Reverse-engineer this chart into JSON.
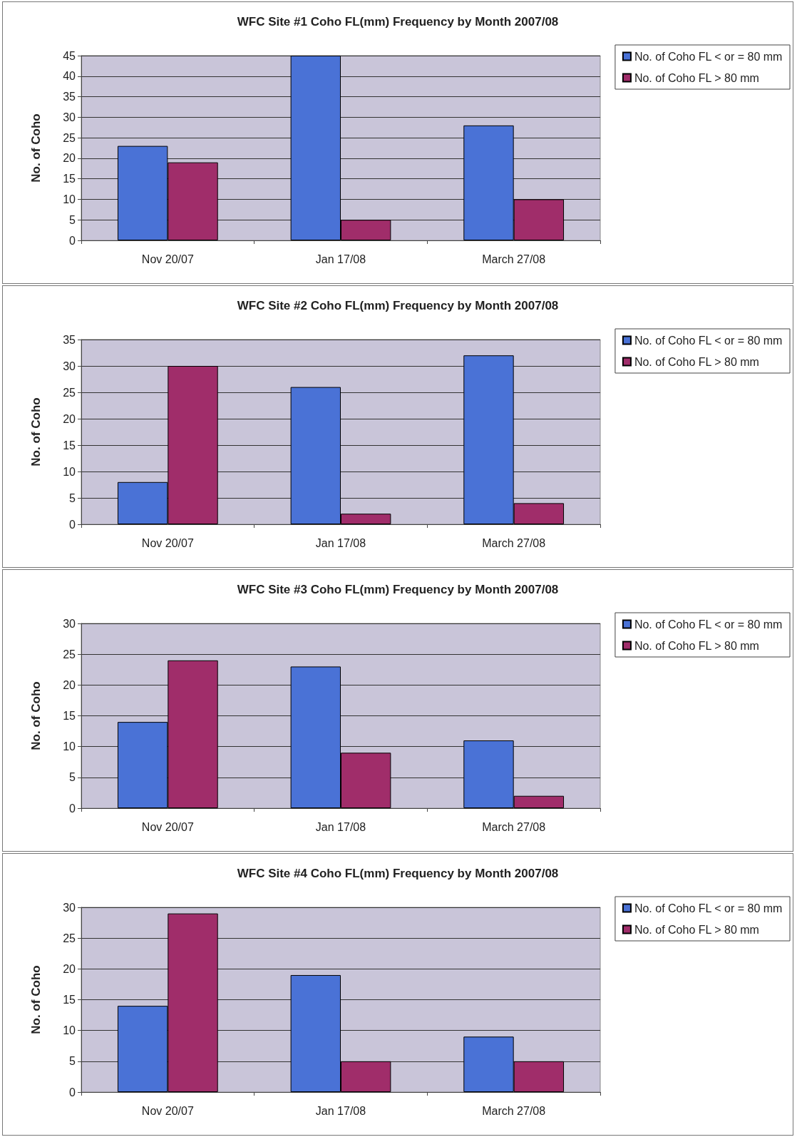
{
  "chart_data": [
    {
      "type": "bar",
      "title": "WFC Site #1 Coho FL(mm) Frequency by Month 2007/08",
      "ylabel": "No. of Coho",
      "categories": [
        "Nov 20/07",
        "Jan 17/08",
        "March 27/08"
      ],
      "series": [
        {
          "name": "No. of Coho FL < or = 80 mm",
          "color": "#4a72d6",
          "values": [
            23,
            45,
            28
          ]
        },
        {
          "name": "No. of Coho FL > 80 mm",
          "color": "#a02d6a",
          "values": [
            19,
            5,
            10
          ]
        }
      ],
      "ylim": [
        0,
        45
      ],
      "yticks": [
        0,
        5,
        10,
        15,
        20,
        25,
        30,
        35,
        40,
        45
      ],
      "grid": "y",
      "legend": "top right"
    },
    {
      "type": "bar",
      "title": "WFC Site #2 Coho FL(mm) Frequency by Month 2007/08",
      "ylabel": "No. of Coho",
      "categories": [
        "Nov 20/07",
        "Jan 17/08",
        "March 27/08"
      ],
      "series": [
        {
          "name": "No. of Coho FL < or = 80 mm",
          "color": "#4a72d6",
          "values": [
            8,
            26,
            32
          ]
        },
        {
          "name": "No. of Coho FL > 80 mm",
          "color": "#a02d6a",
          "values": [
            30,
            2,
            4
          ]
        }
      ],
      "ylim": [
        0,
        35
      ],
      "yticks": [
        0,
        5,
        10,
        15,
        20,
        25,
        30,
        35
      ],
      "grid": "y",
      "legend": "top right"
    },
    {
      "type": "bar",
      "title": "WFC Site #3 Coho FL(mm) Frequency by Month 2007/08",
      "ylabel": "No. of Coho",
      "categories": [
        "Nov 20/07",
        "Jan 17/08",
        "March 27/08"
      ],
      "series": [
        {
          "name": "No. of Coho FL < or = 80 mm",
          "color": "#4a72d6",
          "values": [
            14,
            23,
            11
          ]
        },
        {
          "name": "No. of Coho FL > 80 mm",
          "color": "#a02d6a",
          "values": [
            24,
            9,
            2
          ]
        }
      ],
      "ylim": [
        0,
        30
      ],
      "yticks": [
        0,
        5,
        10,
        15,
        20,
        25,
        30
      ],
      "grid": "y",
      "legend": "top right"
    },
    {
      "type": "bar",
      "title": "WFC Site #4 Coho FL(mm) Frequency by Month 2007/08",
      "ylabel": "No. of Coho",
      "categories": [
        "Nov 20/07",
        "Jan 17/08",
        "March 27/08"
      ],
      "series": [
        {
          "name": "No. of Coho FL < or = 80 mm",
          "color": "#4a72d6",
          "values": [
            14,
            19,
            9
          ]
        },
        {
          "name": "No. of Coho FL > 80 mm",
          "color": "#a02d6a",
          "values": [
            29,
            5,
            5
          ]
        }
      ],
      "ylim": [
        0,
        30
      ],
      "yticks": [
        0,
        5,
        10,
        15,
        20,
        25,
        30
      ],
      "grid": "y",
      "legend": "top right"
    }
  ]
}
